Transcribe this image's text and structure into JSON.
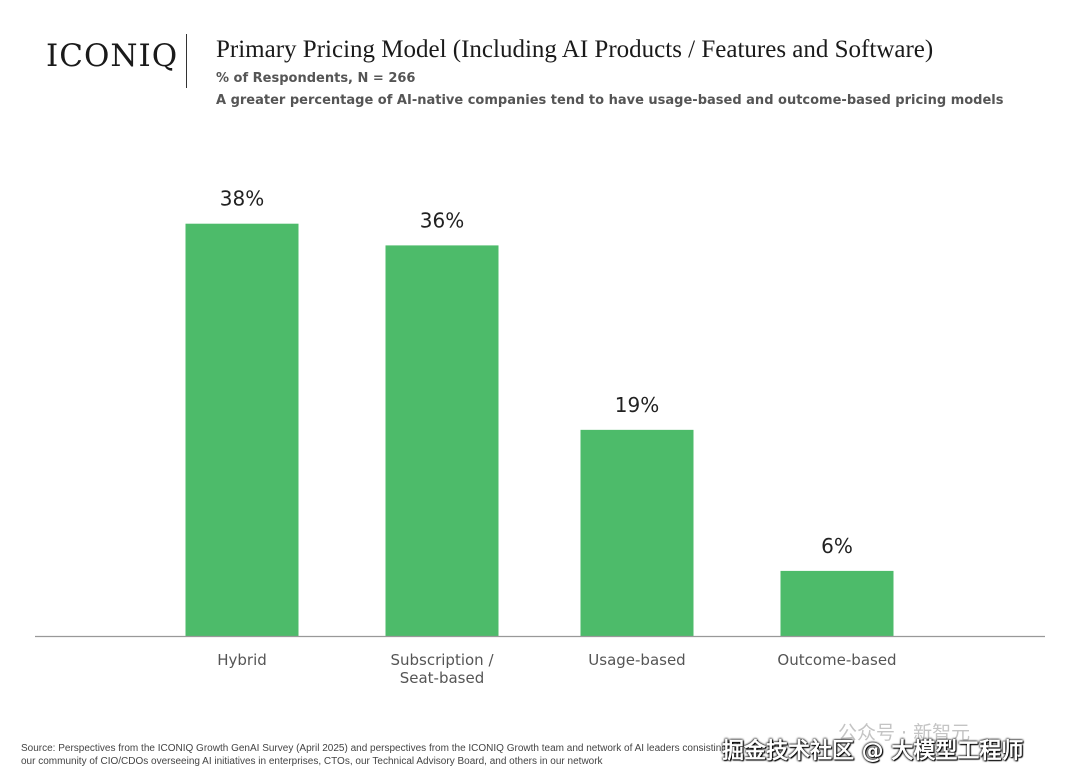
{
  "brand": {
    "logo_text": "ICONIQ"
  },
  "header": {
    "title": "Primary Pricing Model (Including AI Products / Features and Software)",
    "subtitle": "% of Respondents, N = 266",
    "note": "A greater percentage of AI-native companies tend to have usage-based and outcome-based pricing models"
  },
  "chart_data": {
    "type": "bar",
    "title": "Primary Pricing Model (Including AI Products / Features and Software)",
    "subtitle": "% of Respondents, N = 266",
    "categories": [
      "Hybrid",
      "Subscription / Seat-based",
      "Usage-based",
      "Outcome-based"
    ],
    "category_lines": [
      [
        "Hybrid"
      ],
      [
        "Subscription /",
        "Seat-based"
      ],
      [
        "Usage-based"
      ],
      [
        "Outcome-based"
      ]
    ],
    "values": [
      38,
      36,
      19,
      6
    ],
    "value_labels": [
      "38%",
      "36%",
      "19%",
      "6%"
    ],
    "unit": "%",
    "ylim": [
      0,
      40
    ],
    "grid": false,
    "bar_color": "#4dbb6a",
    "axis_color": "#999999"
  },
  "footer": {
    "source": "Source: Perspectives from the ICONIQ Growth GenAI Survey (April 2025) and perspectives from the ICONIQ Growth team and network of AI leaders consisting of our community of CIO/CDOs overseeing AI initiatives in enterprises, CTOs, our Technical Advisory Board, and others in our network"
  },
  "watermark": {
    "top_text": "公众号 · 新智元",
    "text": "掘金技术社区 @ 大模型工程师"
  }
}
